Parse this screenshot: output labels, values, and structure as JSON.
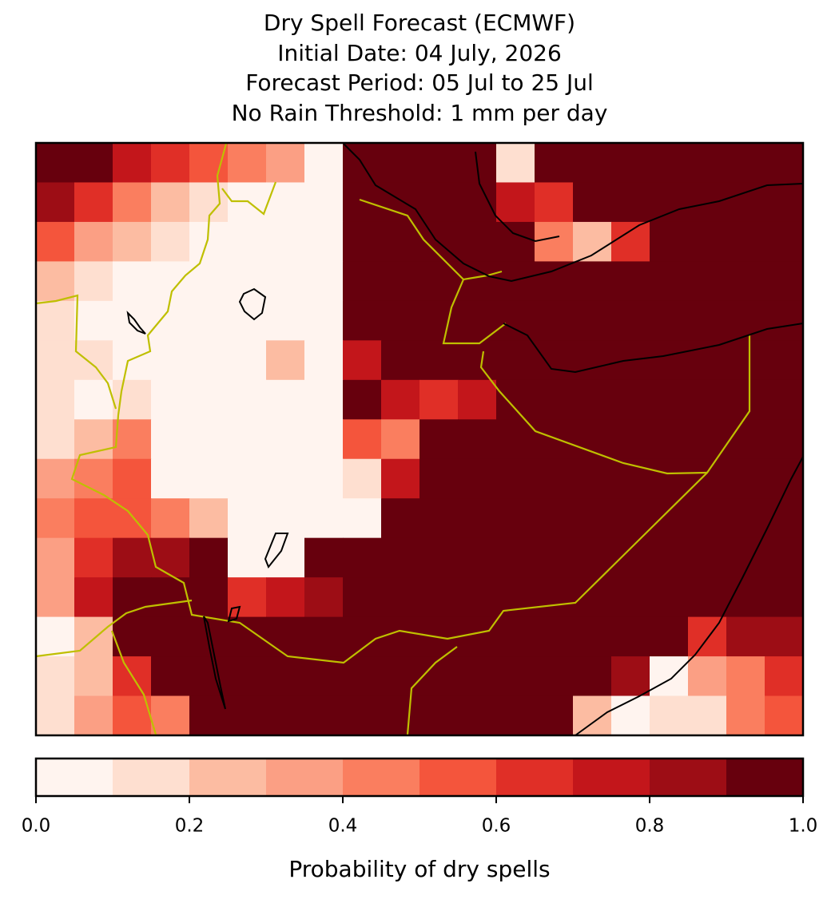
{
  "chart_data": {
    "type": "heatmap",
    "title": [
      "Dry Spell Forecast (ECMWF)",
      "Initial Date: 04 July, 2026",
      "Forecast Period: 05 Jul to 25 Jul",
      "No Rain Threshold: 1 mm per day"
    ],
    "values": [
      [
        0.95,
        0.95,
        0.75,
        0.65,
        0.55,
        0.45,
        0.35,
        0.05,
        0.95,
        0.95,
        0.95,
        0.95,
        0.15,
        0.95,
        0.95,
        0.95,
        0.95,
        0.95,
        0.95,
        0.95
      ],
      [
        0.85,
        0.65,
        0.45,
        0.25,
        0.15,
        0.05,
        0.05,
        0.05,
        0.95,
        0.95,
        0.95,
        0.95,
        0.75,
        0.65,
        0.95,
        0.95,
        0.95,
        0.95,
        0.95,
        0.95
      ],
      [
        0.55,
        0.35,
        0.25,
        0.15,
        0.05,
        0.05,
        0.05,
        0.05,
        0.95,
        0.95,
        0.95,
        0.95,
        0.95,
        0.45,
        0.25,
        0.65,
        0.95,
        0.95,
        0.95,
        0.95
      ],
      [
        0.25,
        0.15,
        0.05,
        0.05,
        0.05,
        0.05,
        0.05,
        0.05,
        0.95,
        0.95,
        0.95,
        0.95,
        0.95,
        0.95,
        0.95,
        0.95,
        0.95,
        0.95,
        0.95,
        0.95
      ],
      [
        0.15,
        0.05,
        0.05,
        0.05,
        0.05,
        0.05,
        0.05,
        0.05,
        0.95,
        0.95,
        0.95,
        0.95,
        0.95,
        0.95,
        0.95,
        0.95,
        0.95,
        0.95,
        0.95,
        0.95
      ],
      [
        0.15,
        0.15,
        0.05,
        0.05,
        0.05,
        0.05,
        0.25,
        0.05,
        0.75,
        0.95,
        0.95,
        0.95,
        0.95,
        0.95,
        0.95,
        0.95,
        0.95,
        0.95,
        0.95,
        0.95
      ],
      [
        0.15,
        0.05,
        0.15,
        0.05,
        0.05,
        0.05,
        0.05,
        0.05,
        0.95,
        0.75,
        0.65,
        0.75,
        0.95,
        0.95,
        0.95,
        0.95,
        0.95,
        0.95,
        0.95,
        0.95
      ],
      [
        0.15,
        0.25,
        0.45,
        0.05,
        0.05,
        0.05,
        0.05,
        0.05,
        0.55,
        0.45,
        0.95,
        0.95,
        0.95,
        0.95,
        0.95,
        0.95,
        0.95,
        0.95,
        0.95,
        0.95
      ],
      [
        0.35,
        0.45,
        0.55,
        0.05,
        0.05,
        0.05,
        0.05,
        0.05,
        0.15,
        0.75,
        0.95,
        0.95,
        0.95,
        0.95,
        0.95,
        0.95,
        0.95,
        0.95,
        0.95,
        0.95
      ],
      [
        0.45,
        0.55,
        0.55,
        0.45,
        0.25,
        0.05,
        0.05,
        0.05,
        0.05,
        0.95,
        0.95,
        0.95,
        0.95,
        0.95,
        0.95,
        0.95,
        0.95,
        0.95,
        0.95,
        0.95
      ],
      [
        0.35,
        0.65,
        0.85,
        0.85,
        0.95,
        0.05,
        0.05,
        0.95,
        0.95,
        0.95,
        0.95,
        0.95,
        0.95,
        0.95,
        0.95,
        0.95,
        0.95,
        0.95,
        0.95,
        0.95
      ],
      [
        0.35,
        0.75,
        0.95,
        0.95,
        0.95,
        0.65,
        0.75,
        0.85,
        0.95,
        0.95,
        0.95,
        0.95,
        0.95,
        0.95,
        0.95,
        0.95,
        0.95,
        0.95,
        0.95,
        0.95
      ],
      [
        0.05,
        0.25,
        0.95,
        0.95,
        0.95,
        0.95,
        0.95,
        0.95,
        0.95,
        0.95,
        0.95,
        0.95,
        0.95,
        0.95,
        0.95,
        0.95,
        0.95,
        0.65,
        0.85,
        0.85
      ],
      [
        0.15,
        0.25,
        0.65,
        0.95,
        0.95,
        0.95,
        0.95,
        0.95,
        0.95,
        0.95,
        0.95,
        0.95,
        0.95,
        0.95,
        0.95,
        0.85,
        0.05,
        0.35,
        0.45,
        0.65
      ],
      [
        0.15,
        0.35,
        0.55,
        0.45,
        0.95,
        0.95,
        0.95,
        0.95,
        0.95,
        0.95,
        0.95,
        0.95,
        0.95,
        0.95,
        0.25,
        0.05,
        0.15,
        0.15,
        0.45,
        0.55
      ]
    ],
    "colorbar": {
      "label": "Probability of dry spells",
      "lim": [
        0,
        1
      ],
      "boundaries": [
        0,
        0.1,
        0.2,
        0.3,
        0.4,
        0.5,
        0.6,
        0.7,
        0.8,
        0.9,
        1
      ],
      "colors": [
        "#fff4ef",
        "#fedfd0",
        "#fcbca2",
        "#fb9f84",
        "#fa7e5f",
        "#f4553c",
        "#e02f27",
        "#c3161b",
        "#9d0d15",
        "#67000d"
      ],
      "ticks": [
        {
          "value": 0,
          "label": "0.0"
        },
        {
          "value": 0.2,
          "label": "0.2"
        },
        {
          "value": 0.4,
          "label": "0.4"
        },
        {
          "value": 0.6,
          "label": "0.6"
        },
        {
          "value": 0.8,
          "label": "0.8"
        },
        {
          "value": 1,
          "label": "1.0"
        }
      ]
    }
  }
}
